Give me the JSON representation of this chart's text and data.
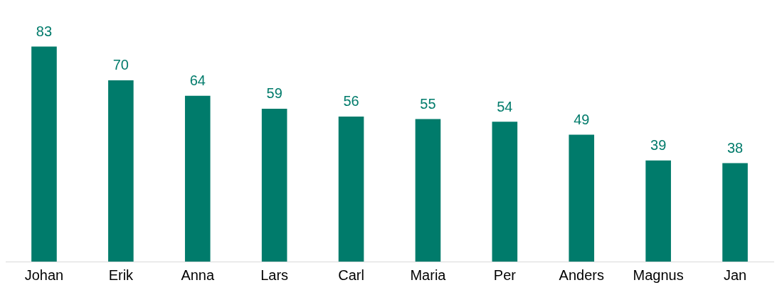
{
  "chart_data": {
    "type": "bar",
    "categories": [
      "Johan",
      "Erik",
      "Anna",
      "Lars",
      "Carl",
      "Maria",
      "Per",
      "Anders",
      "Magnus",
      "Jan"
    ],
    "values": [
      83,
      70,
      64,
      59,
      56,
      55,
      54,
      49,
      39,
      38
    ],
    "color": "#007b6b",
    "data_labels": true,
    "grid": false,
    "legend": false
  }
}
